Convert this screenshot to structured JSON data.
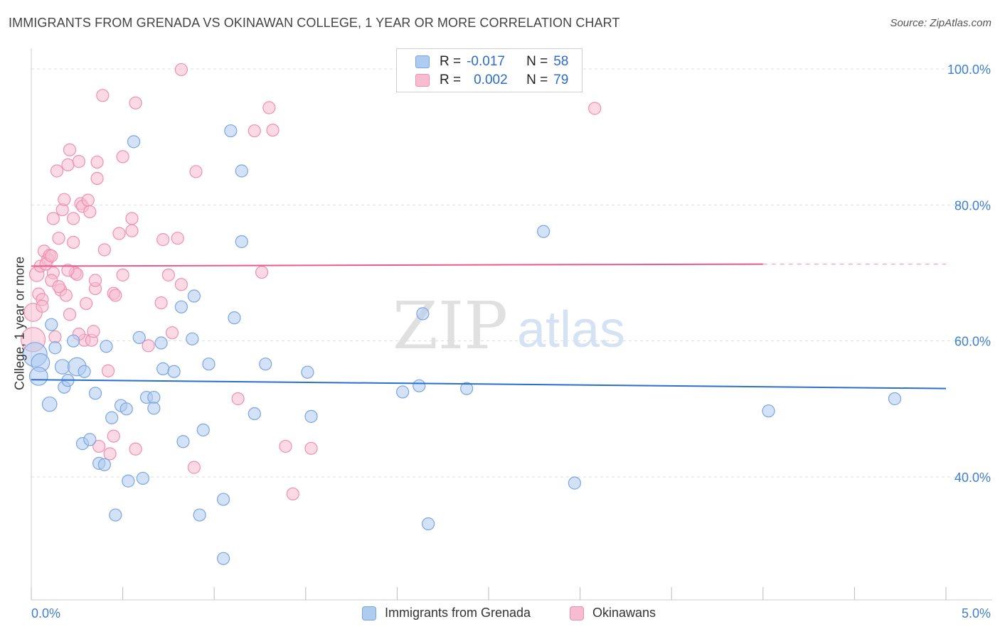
{
  "header": {
    "title": "IMMIGRANTS FROM GRENADA VS OKINAWAN COLLEGE, 1 YEAR OR MORE CORRELATION CHART",
    "source": "Source: ZipAtlas.com"
  },
  "watermark": {
    "zip": "ZIP",
    "atlas": "atlas"
  },
  "legend": {
    "rows": [
      {
        "r_label": "R =",
        "r_value": "-0.017",
        "n_label": "N =",
        "n_value": "58"
      },
      {
        "r_label": "R =",
        "r_value": "0.002",
        "n_label": "N =",
        "n_value": "79"
      }
    ]
  },
  "bottom_legend": {
    "series1": "Immigrants from Grenada",
    "series2": "Okinawans"
  },
  "colors": {
    "blue_fill": "#aecbf0",
    "blue_stroke": "#7aa6df",
    "blue_line": "#2a6fcc",
    "pink_fill": "#f8bcd0",
    "pink_stroke": "#f08fb0",
    "pink_line": "#ec5a8a",
    "axis_text": "#3f7fd0",
    "grid": "#dddddd"
  },
  "chart_data": {
    "type": "scatter",
    "title": "IMMIGRANTS FROM GRENADA VS OKINAWAN COLLEGE, 1 YEAR OR MORE CORRELATION CHART",
    "xlabel": "",
    "ylabel": "College, 1 year or more",
    "xlim": [
      0,
      5
    ],
    "ylim": [
      20,
      100
    ],
    "x_tick_labels": [
      "0.0%",
      "5.0%"
    ],
    "y_tick_labels": [
      "100.0%",
      "80.0%",
      "60.0%",
      "40.0%"
    ],
    "y_ticks": [
      100,
      80,
      60,
      40
    ],
    "series": [
      {
        "name": "Immigrants from Grenada",
        "R": -0.017,
        "N": 58,
        "trend": {
          "x0": 0.0,
          "y0": 54.3,
          "x1": 5.0,
          "y1": 53.0
        },
        "points": [
          {
            "x": 0.02,
            "y": 58.0,
            "s": 2
          },
          {
            "x": 0.05,
            "y": 56.8,
            "s": 1.5
          },
          {
            "x": 0.04,
            "y": 54.8,
            "s": 1.5
          },
          {
            "x": 0.1,
            "y": 50.7,
            "s": 1.2
          },
          {
            "x": 0.11,
            "y": 62.4,
            "s": 1
          },
          {
            "x": 0.13,
            "y": 59.0,
            "s": 1
          },
          {
            "x": 0.17,
            "y": 56.2,
            "s": 1.2
          },
          {
            "x": 0.18,
            "y": 53.2,
            "s": 1
          },
          {
            "x": 0.2,
            "y": 54.2,
            "s": 1
          },
          {
            "x": 0.23,
            "y": 60.0,
            "s": 1
          },
          {
            "x": 0.25,
            "y": 56.2,
            "s": 1.5
          },
          {
            "x": 0.29,
            "y": 55.5,
            "s": 1
          },
          {
            "x": 0.35,
            "y": 52.3,
            "s": 1
          },
          {
            "x": 0.41,
            "y": 59.2,
            "s": 1
          },
          {
            "x": 0.44,
            "y": 48.7,
            "s": 1
          },
          {
            "x": 0.49,
            "y": 50.5,
            "s": 1
          },
          {
            "x": 0.52,
            "y": 50.0,
            "s": 1
          },
          {
            "x": 0.56,
            "y": 89.3,
            "s": 1
          },
          {
            "x": 0.59,
            "y": 60.5,
            "s": 1
          },
          {
            "x": 0.63,
            "y": 51.7,
            "s": 1
          },
          {
            "x": 0.67,
            "y": 51.7,
            "s": 1
          },
          {
            "x": 0.67,
            "y": 50.1,
            "s": 1
          },
          {
            "x": 0.71,
            "y": 59.7,
            "s": 1
          },
          {
            "x": 0.72,
            "y": 55.9,
            "s": 1
          },
          {
            "x": 0.78,
            "y": 55.5,
            "s": 1
          },
          {
            "x": 0.82,
            "y": 65.0,
            "s": 1
          },
          {
            "x": 0.88,
            "y": 60.3,
            "s": 1
          },
          {
            "x": 0.89,
            "y": 66.6,
            "s": 1
          },
          {
            "x": 0.83,
            "y": 45.2,
            "s": 1
          },
          {
            "x": 0.94,
            "y": 46.9,
            "s": 1
          },
          {
            "x": 0.97,
            "y": 56.6,
            "s": 1
          },
          {
            "x": 0.28,
            "y": 44.9,
            "s": 1
          },
          {
            "x": 0.32,
            "y": 45.5,
            "s": 1
          },
          {
            "x": 0.37,
            "y": 42.0,
            "s": 1
          },
          {
            "x": 0.4,
            "y": 41.8,
            "s": 1
          },
          {
            "x": 0.53,
            "y": 39.4,
            "s": 1
          },
          {
            "x": 0.61,
            "y": 39.8,
            "s": 1
          },
          {
            "x": 0.46,
            "y": 34.4,
            "s": 1
          },
          {
            "x": 0.92,
            "y": 34.4,
            "s": 1
          },
          {
            "x": 1.05,
            "y": 36.7,
            "s": 1
          },
          {
            "x": 1.05,
            "y": 28.0,
            "s": 1
          },
          {
            "x": 1.09,
            "y": 90.9,
            "s": 1
          },
          {
            "x": 1.15,
            "y": 74.6,
            "s": 1
          },
          {
            "x": 1.11,
            "y": 63.4,
            "s": 1
          },
          {
            "x": 1.15,
            "y": 85.0,
            "s": 1
          },
          {
            "x": 1.22,
            "y": 49.3,
            "s": 1
          },
          {
            "x": 1.28,
            "y": 56.6,
            "s": 1
          },
          {
            "x": 1.51,
            "y": 55.4,
            "s": 1
          },
          {
            "x": 1.53,
            "y": 48.9,
            "s": 1
          },
          {
            "x": 2.03,
            "y": 52.5,
            "s": 1
          },
          {
            "x": 2.12,
            "y": 53.4,
            "s": 1
          },
          {
            "x": 2.14,
            "y": 64.0,
            "s": 1
          },
          {
            "x": 2.17,
            "y": 33.1,
            "s": 1
          },
          {
            "x": 2.38,
            "y": 53.0,
            "s": 1
          },
          {
            "x": 2.8,
            "y": 76.1,
            "s": 1
          },
          {
            "x": 2.97,
            "y": 39.1,
            "s": 1
          },
          {
            "x": 4.03,
            "y": 49.7,
            "s": 1
          },
          {
            "x": 4.72,
            "y": 51.5,
            "s": 1
          }
        ]
      },
      {
        "name": "Okinawans",
        "R": 0.002,
        "N": 79,
        "trend": {
          "x0": 0.0,
          "y0": 71.0,
          "x1": 4.0,
          "y1": 71.3,
          "dashed_to_x": 5.0
        },
        "points": [
          {
            "x": 0.01,
            "y": 60.2,
            "s": 2
          },
          {
            "x": 0.01,
            "y": 64.2,
            "s": 1.5
          },
          {
            "x": 0.03,
            "y": 69.8,
            "s": 1.2
          },
          {
            "x": 0.04,
            "y": 66.9,
            "s": 1
          },
          {
            "x": 0.06,
            "y": 66.1,
            "s": 1
          },
          {
            "x": 0.05,
            "y": 71.0,
            "s": 1
          },
          {
            "x": 0.07,
            "y": 73.2,
            "s": 1
          },
          {
            "x": 0.09,
            "y": 72.0,
            "s": 1
          },
          {
            "x": 0.1,
            "y": 72.6,
            "s": 1
          },
          {
            "x": 0.12,
            "y": 70.0,
            "s": 1
          },
          {
            "x": 0.11,
            "y": 68.9,
            "s": 1
          },
          {
            "x": 0.12,
            "y": 78.0,
            "s": 1
          },
          {
            "x": 0.14,
            "y": 85.0,
            "s": 1
          },
          {
            "x": 0.15,
            "y": 75.1,
            "s": 1
          },
          {
            "x": 0.16,
            "y": 67.5,
            "s": 1
          },
          {
            "x": 0.17,
            "y": 79.3,
            "s": 1
          },
          {
            "x": 0.18,
            "y": 80.8,
            "s": 1
          },
          {
            "x": 0.19,
            "y": 66.7,
            "s": 1
          },
          {
            "x": 0.2,
            "y": 85.9,
            "s": 1
          },
          {
            "x": 0.21,
            "y": 88.1,
            "s": 1
          },
          {
            "x": 0.21,
            "y": 63.9,
            "s": 1
          },
          {
            "x": 0.23,
            "y": 78.0,
            "s": 1
          },
          {
            "x": 0.23,
            "y": 74.5,
            "s": 1
          },
          {
            "x": 0.24,
            "y": 70.0,
            "s": 1
          },
          {
            "x": 0.25,
            "y": 69.8,
            "s": 1
          },
          {
            "x": 0.26,
            "y": 86.4,
            "s": 1
          },
          {
            "x": 0.27,
            "y": 80.2,
            "s": 1
          },
          {
            "x": 0.28,
            "y": 79.8,
            "s": 1
          },
          {
            "x": 0.29,
            "y": 60.1,
            "s": 1
          },
          {
            "x": 0.3,
            "y": 65.5,
            "s": 1
          },
          {
            "x": 0.31,
            "y": 80.7,
            "s": 1
          },
          {
            "x": 0.32,
            "y": 79.0,
            "s": 1
          },
          {
            "x": 0.33,
            "y": 60.1,
            "s": 1
          },
          {
            "x": 0.34,
            "y": 61.4,
            "s": 1
          },
          {
            "x": 0.35,
            "y": 67.7,
            "s": 1
          },
          {
            "x": 0.35,
            "y": 68.9,
            "s": 1
          },
          {
            "x": 0.36,
            "y": 83.9,
            "s": 1
          },
          {
            "x": 0.36,
            "y": 86.3,
            "s": 1
          },
          {
            "x": 0.37,
            "y": 44.5,
            "s": 1
          },
          {
            "x": 0.39,
            "y": 96.1,
            "s": 1
          },
          {
            "x": 0.4,
            "y": 73.4,
            "s": 1
          },
          {
            "x": 0.42,
            "y": 55.6,
            "s": 1
          },
          {
            "x": 0.43,
            "y": 43.4,
            "s": 1
          },
          {
            "x": 0.45,
            "y": 67.0,
            "s": 1
          },
          {
            "x": 0.46,
            "y": 66.7,
            "s": 1
          },
          {
            "x": 0.45,
            "y": 46.0,
            "s": 1
          },
          {
            "x": 0.48,
            "y": 75.8,
            "s": 1
          },
          {
            "x": 0.5,
            "y": 69.7,
            "s": 1
          },
          {
            "x": 0.5,
            "y": 87.1,
            "s": 1
          },
          {
            "x": 0.55,
            "y": 78.0,
            "s": 1
          },
          {
            "x": 0.55,
            "y": 76.2,
            "s": 1
          },
          {
            "x": 0.57,
            "y": 44.1,
            "s": 1
          },
          {
            "x": 0.57,
            "y": 95.0,
            "s": 1
          },
          {
            "x": 0.64,
            "y": 59.3,
            "s": 1
          },
          {
            "x": 0.71,
            "y": 65.6,
            "s": 1
          },
          {
            "x": 0.72,
            "y": 74.9,
            "s": 1
          },
          {
            "x": 0.75,
            "y": 69.7,
            "s": 1
          },
          {
            "x": 0.77,
            "y": 61.2,
            "s": 1
          },
          {
            "x": 0.8,
            "y": 75.1,
            "s": 1
          },
          {
            "x": 0.82,
            "y": 68.3,
            "s": 1
          },
          {
            "x": 0.82,
            "y": 99.9,
            "s": 1
          },
          {
            "x": 0.89,
            "y": 41.4,
            "s": 1
          },
          {
            "x": 0.9,
            "y": 84.9,
            "s": 1
          },
          {
            "x": 1.13,
            "y": 51.5,
            "s": 1
          },
          {
            "x": 1.22,
            "y": 90.9,
            "s": 1
          },
          {
            "x": 1.26,
            "y": 70.1,
            "s": 1
          },
          {
            "x": 1.3,
            "y": 94.3,
            "s": 1
          },
          {
            "x": 1.32,
            "y": 91.0,
            "s": 1
          },
          {
            "x": 1.39,
            "y": 44.5,
            "s": 1
          },
          {
            "x": 1.43,
            "y": 37.5,
            "s": 1
          },
          {
            "x": 1.53,
            "y": 44.2,
            "s": 1
          },
          {
            "x": 3.08,
            "y": 94.2,
            "s": 1
          },
          {
            "x": 0.13,
            "y": 60.6,
            "s": 1
          },
          {
            "x": 0.06,
            "y": 65.1,
            "s": 1
          },
          {
            "x": 0.15,
            "y": 68.0,
            "s": 1
          },
          {
            "x": 0.08,
            "y": 71.3,
            "s": 1
          },
          {
            "x": 0.26,
            "y": 61.0,
            "s": 1
          },
          {
            "x": 0.11,
            "y": 72.5,
            "s": 1
          },
          {
            "x": 0.2,
            "y": 70.4,
            "s": 1
          }
        ]
      }
    ]
  }
}
